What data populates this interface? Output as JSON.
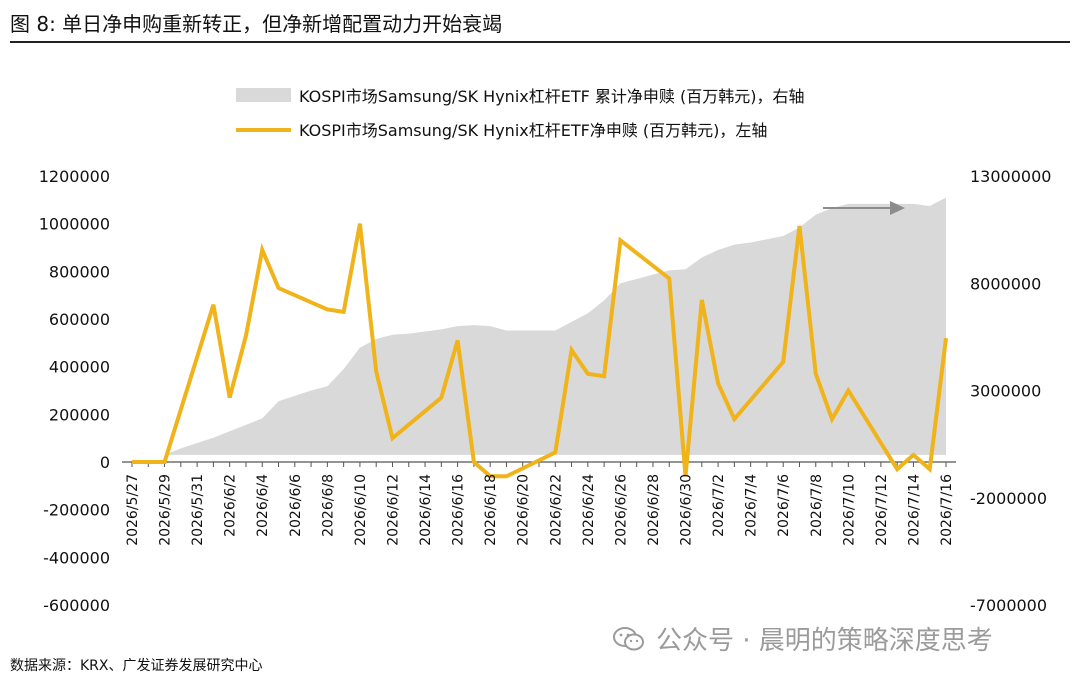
{
  "title": "图 8: 单日净申购重新转正，但净新增配置动力开始衰竭",
  "source": "数据来源：KRX、广发证券发展研究中心",
  "watermark": "公众号 · 晨明的策略深度思考",
  "chart_data": {
    "type": "line",
    "legend": [
      {
        "name": "KOSPI市场Samsung/SK Hynix杠杆ETF 累计净申赎 (百万韩元)，右轴",
        "kind": "area",
        "color": "#d9d9d9"
      },
      {
        "name": "KOSPI市场Samsung/SK Hynix杠杆ETF净申赎 (百万韩元)，左轴",
        "kind": "line",
        "color": "#f0b31a"
      }
    ],
    "x_tick_labels": [
      "2026/5/27",
      "2026/5/29",
      "2026/5/31",
      "2026/6/2",
      "2026/6/4",
      "2026/6/6",
      "2026/6/8",
      "2026/6/10",
      "2026/6/12",
      "2026/6/14",
      "2026/6/16",
      "2026/6/18",
      "2026/6/20",
      "2026/6/22",
      "2026/6/24",
      "2026/6/26",
      "2026/6/28",
      "2026/6/30",
      "2026/7/2",
      "2026/7/4",
      "2026/7/6",
      "2026/7/8",
      "2026/7/10",
      "2026/7/12",
      "2026/7/14",
      "2026/7/16"
    ],
    "left_axis": {
      "ticks": [
        "1200000",
        "1000000",
        "800000",
        "600000",
        "400000",
        "200000",
        "0",
        "-200000",
        "-400000",
        "-600000"
      ],
      "ylim": [
        -600000,
        1200000
      ]
    },
    "right_axis": {
      "ticks": [
        "13000000",
        "8000000",
        "3000000",
        "-2000000",
        "-7000000"
      ],
      "ylim": [
        -7000000,
        13000000
      ]
    },
    "series": [
      {
        "name": "KOSPI市场Samsung/SK Hynix杠杆ETF 累计净申赎 (百万韩元)，右轴",
        "type": "area",
        "axis": "right",
        "x": [
          "2026/5/27",
          "2026/5/28",
          "2026/5/29",
          "2026/5/30",
          "2026/5/31",
          "2026/6/1",
          "2026/6/2",
          "2026/6/3",
          "2026/6/4",
          "2026/6/5",
          "2026/6/6",
          "2026/6/7",
          "2026/6/8",
          "2026/6/9",
          "2026/6/10",
          "2026/6/11",
          "2026/6/12",
          "2026/6/13",
          "2026/6/14",
          "2026/6/15",
          "2026/6/16",
          "2026/6/17",
          "2026/6/18",
          "2026/6/19",
          "2026/6/20",
          "2026/6/21",
          "2026/6/22",
          "2026/6/23",
          "2026/6/24",
          "2026/6/25",
          "2026/6/26",
          "2026/6/27",
          "2026/6/28",
          "2026/6/29",
          "2026/6/30",
          "2026/7/1",
          "2026/7/2",
          "2026/7/3",
          "2026/7/4",
          "2026/7/5",
          "2026/7/6",
          "2026/7/7",
          "2026/7/8",
          "2026/7/9",
          "2026/7/10",
          "2026/7/11",
          "2026/7/12",
          "2026/7/13",
          "2026/7/14",
          "2026/7/15",
          "2026/7/16"
        ],
        "values": [
          0,
          0,
          0,
          300000,
          550000,
          800000,
          1100000,
          1400000,
          1700000,
          2500000,
          2750000,
          3000000,
          3200000,
          4000000,
          5000000,
          5400000,
          5600000,
          5650000,
          5750000,
          5850000,
          6000000,
          6050000,
          6000000,
          5800000,
          5800000,
          5800000,
          5800000,
          6200000,
          6600000,
          7200000,
          8000000,
          8200000,
          8400000,
          8600000,
          8650000,
          9200000,
          9550000,
          9800000,
          9900000,
          10050000,
          10200000,
          10600000,
          11200000,
          11500000,
          11700000,
          11700000,
          11700000,
          11700000,
          11700000,
          11600000,
          12000000
        ]
      },
      {
        "name": "KOSPI市场Samsung/SK Hynix杠杆ETF净申赎 (百万韩元)，左轴",
        "type": "line",
        "axis": "left",
        "x": [
          "2026/5/27",
          "2026/5/28",
          "2026/5/29",
          "2026/6/1",
          "2026/6/2",
          "2026/6/3",
          "2026/6/4",
          "2026/6/5",
          "2026/6/8",
          "2026/6/9",
          "2026/6/10",
          "2026/6/11",
          "2026/6/12",
          "2026/6/15",
          "2026/6/16",
          "2026/6/17",
          "2026/6/18",
          "2026/6/19",
          "2026/6/22",
          "2026/6/23",
          "2026/6/24",
          "2026/6/25",
          "2026/6/26",
          "2026/6/29",
          "2026/6/30",
          "2026/7/1",
          "2026/7/2",
          "2026/7/3",
          "2026/7/6",
          "2026/7/7",
          "2026/7/8",
          "2026/7/9",
          "2026/7/10",
          "2026/7/13",
          "2026/7/14",
          "2026/7/15",
          "2026/7/16"
        ],
        "values": [
          0,
          0,
          0,
          660000,
          270000,
          530000,
          890000,
          730000,
          640000,
          630000,
          1000000,
          380000,
          100000,
          270000,
          510000,
          0,
          -60000,
          -60000,
          40000,
          470000,
          370000,
          360000,
          930000,
          770000,
          -60000,
          680000,
          330000,
          180000,
          420000,
          990000,
          370000,
          180000,
          300000,
          -30000,
          30000,
          -30000,
          520000
        ]
      }
    ]
  }
}
